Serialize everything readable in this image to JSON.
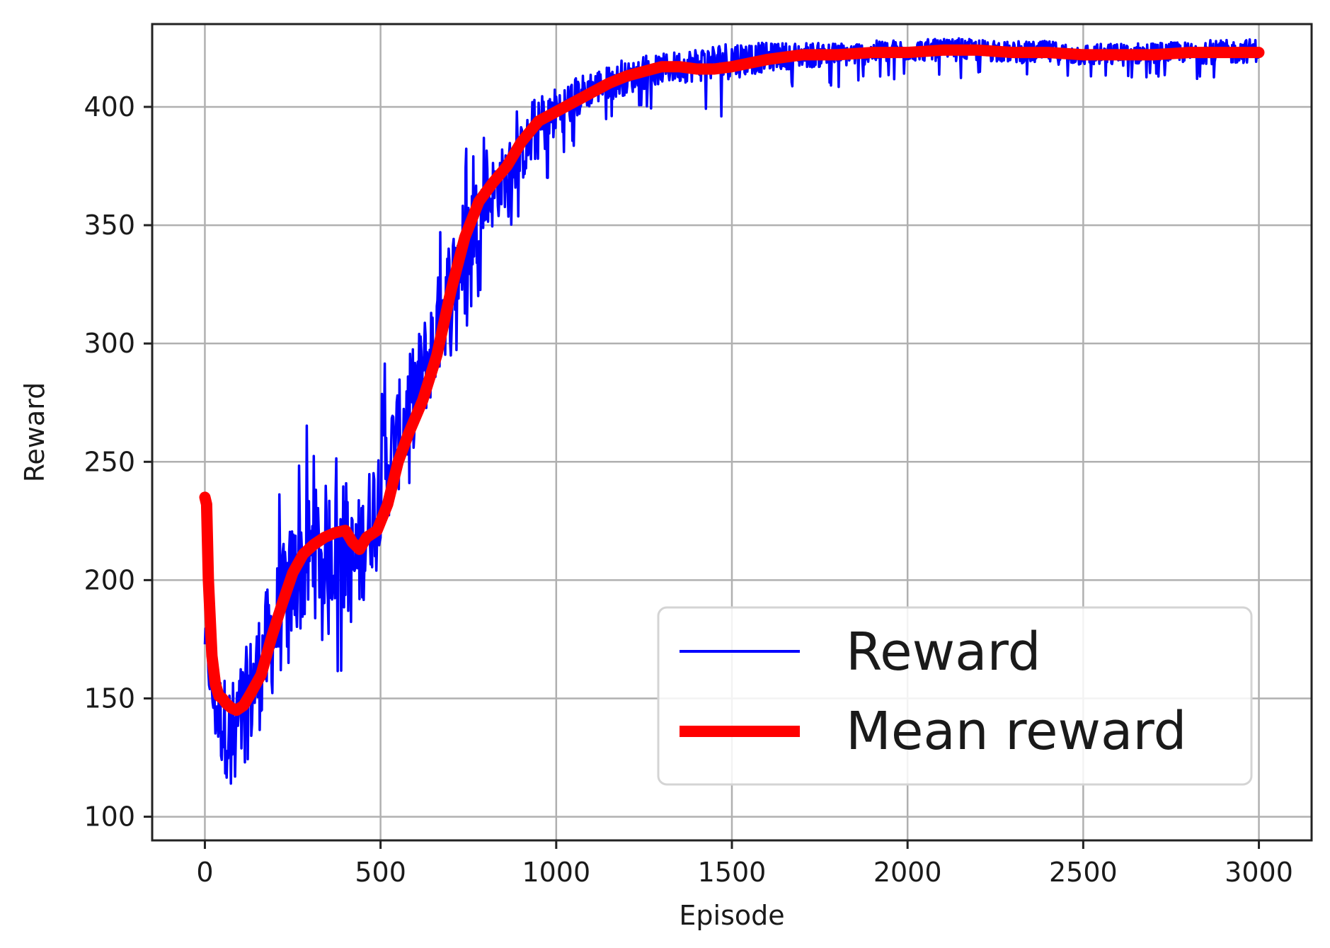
{
  "chart_data": {
    "type": "line",
    "xlabel": "Episode",
    "ylabel": "Reward",
    "xlim": [
      -150,
      3150
    ],
    "ylim": [
      90,
      435
    ],
    "xticks": [
      0,
      500,
      1000,
      1500,
      2000,
      2500,
      3000
    ],
    "yticks": [
      100,
      150,
      200,
      250,
      300,
      350,
      400
    ],
    "grid": true,
    "legend_position": "lower-right",
    "series": [
      {
        "name": "Reward",
        "color": "#0000ff",
        "style": "noisy-line",
        "x": [
          0,
          25,
          50,
          75,
          100,
          125,
          150,
          175,
          200,
          250,
          300,
          350,
          400,
          425,
          450,
          500,
          550,
          600,
          650,
          700,
          750,
          800,
          850,
          900,
          950,
          1000,
          1100,
          1200,
          1300,
          1400,
          1500,
          1600,
          1700,
          1800,
          1900,
          2000,
          2100,
          2200,
          2300,
          2400,
          2500,
          2600,
          2700,
          2800,
          2900,
          3000
        ],
        "y": [
          175,
          150,
          140,
          135,
          140,
          150,
          160,
          170,
          180,
          200,
          210,
          215,
          210,
          205,
          215,
          240,
          260,
          280,
          300,
          325,
          345,
          360,
          370,
          380,
          390,
          398,
          408,
          412,
          416,
          418,
          420,
          421,
          422,
          422,
          423,
          424,
          424,
          424,
          423,
          423,
          422,
          422,
          423,
          423,
          423,
          424
        ],
        "min": [
          170,
          115,
          105,
          110,
          115,
          125,
          130,
          135,
          150,
          160,
          165,
          165,
          155,
          160,
          185,
          205,
          225,
          245,
          270,
          290,
          305,
          330,
          345,
          355,
          360,
          370,
          390,
          395,
          400,
          398,
          395,
          405,
          407,
          408,
          410,
          412,
          412,
          412,
          412,
          410,
          410,
          410,
          412,
          412,
          410,
          412
        ],
        "max": [
          190,
          185,
          180,
          190,
          205,
          215,
          225,
          230,
          245,
          255,
          268,
          260,
          250,
          255,
          275,
          290,
          310,
          325,
          350,
          375,
          385,
          390,
          395,
          400,
          405,
          410,
          418,
          420,
          423,
          425,
          425,
          427,
          427,
          427,
          428,
          429,
          429,
          429,
          428,
          428,
          427,
          428,
          428,
          428,
          429,
          430
        ]
      },
      {
        "name": "Mean reward",
        "color": "#ff0000",
        "x": [
          0,
          5,
          10,
          20,
          30,
          40,
          50,
          60,
          75,
          90,
          110,
          130,
          160,
          190,
          220,
          250,
          280,
          310,
          340,
          370,
          400,
          420,
          440,
          460,
          490,
          520,
          550,
          580,
          620,
          660,
          700,
          740,
          780,
          820,
          860,
          900,
          950,
          1000,
          1050,
          1100,
          1150,
          1200,
          1250,
          1300,
          1350,
          1400,
          1450,
          1500,
          1600,
          1700,
          1800,
          1900,
          2000,
          2100,
          2200,
          2300,
          2400,
          2500,
          2600,
          2700,
          2800,
          2900,
          3000
        ],
        "y": [
          235,
          232,
          200,
          168,
          156,
          151,
          150,
          148,
          146,
          145,
          147,
          152,
          160,
          176,
          190,
          203,
          211,
          215,
          218,
          220,
          221,
          216,
          213,
          218,
          221,
          232,
          250,
          262,
          276,
          295,
          322,
          345,
          360,
          368,
          375,
          385,
          394,
          398,
          402,
          406,
          410,
          413,
          415,
          417,
          417,
          416,
          416,
          417,
          420,
          422,
          422,
          423,
          423,
          424,
          424,
          423,
          423,
          422,
          422,
          422,
          423,
          423,
          423
        ]
      }
    ]
  }
}
